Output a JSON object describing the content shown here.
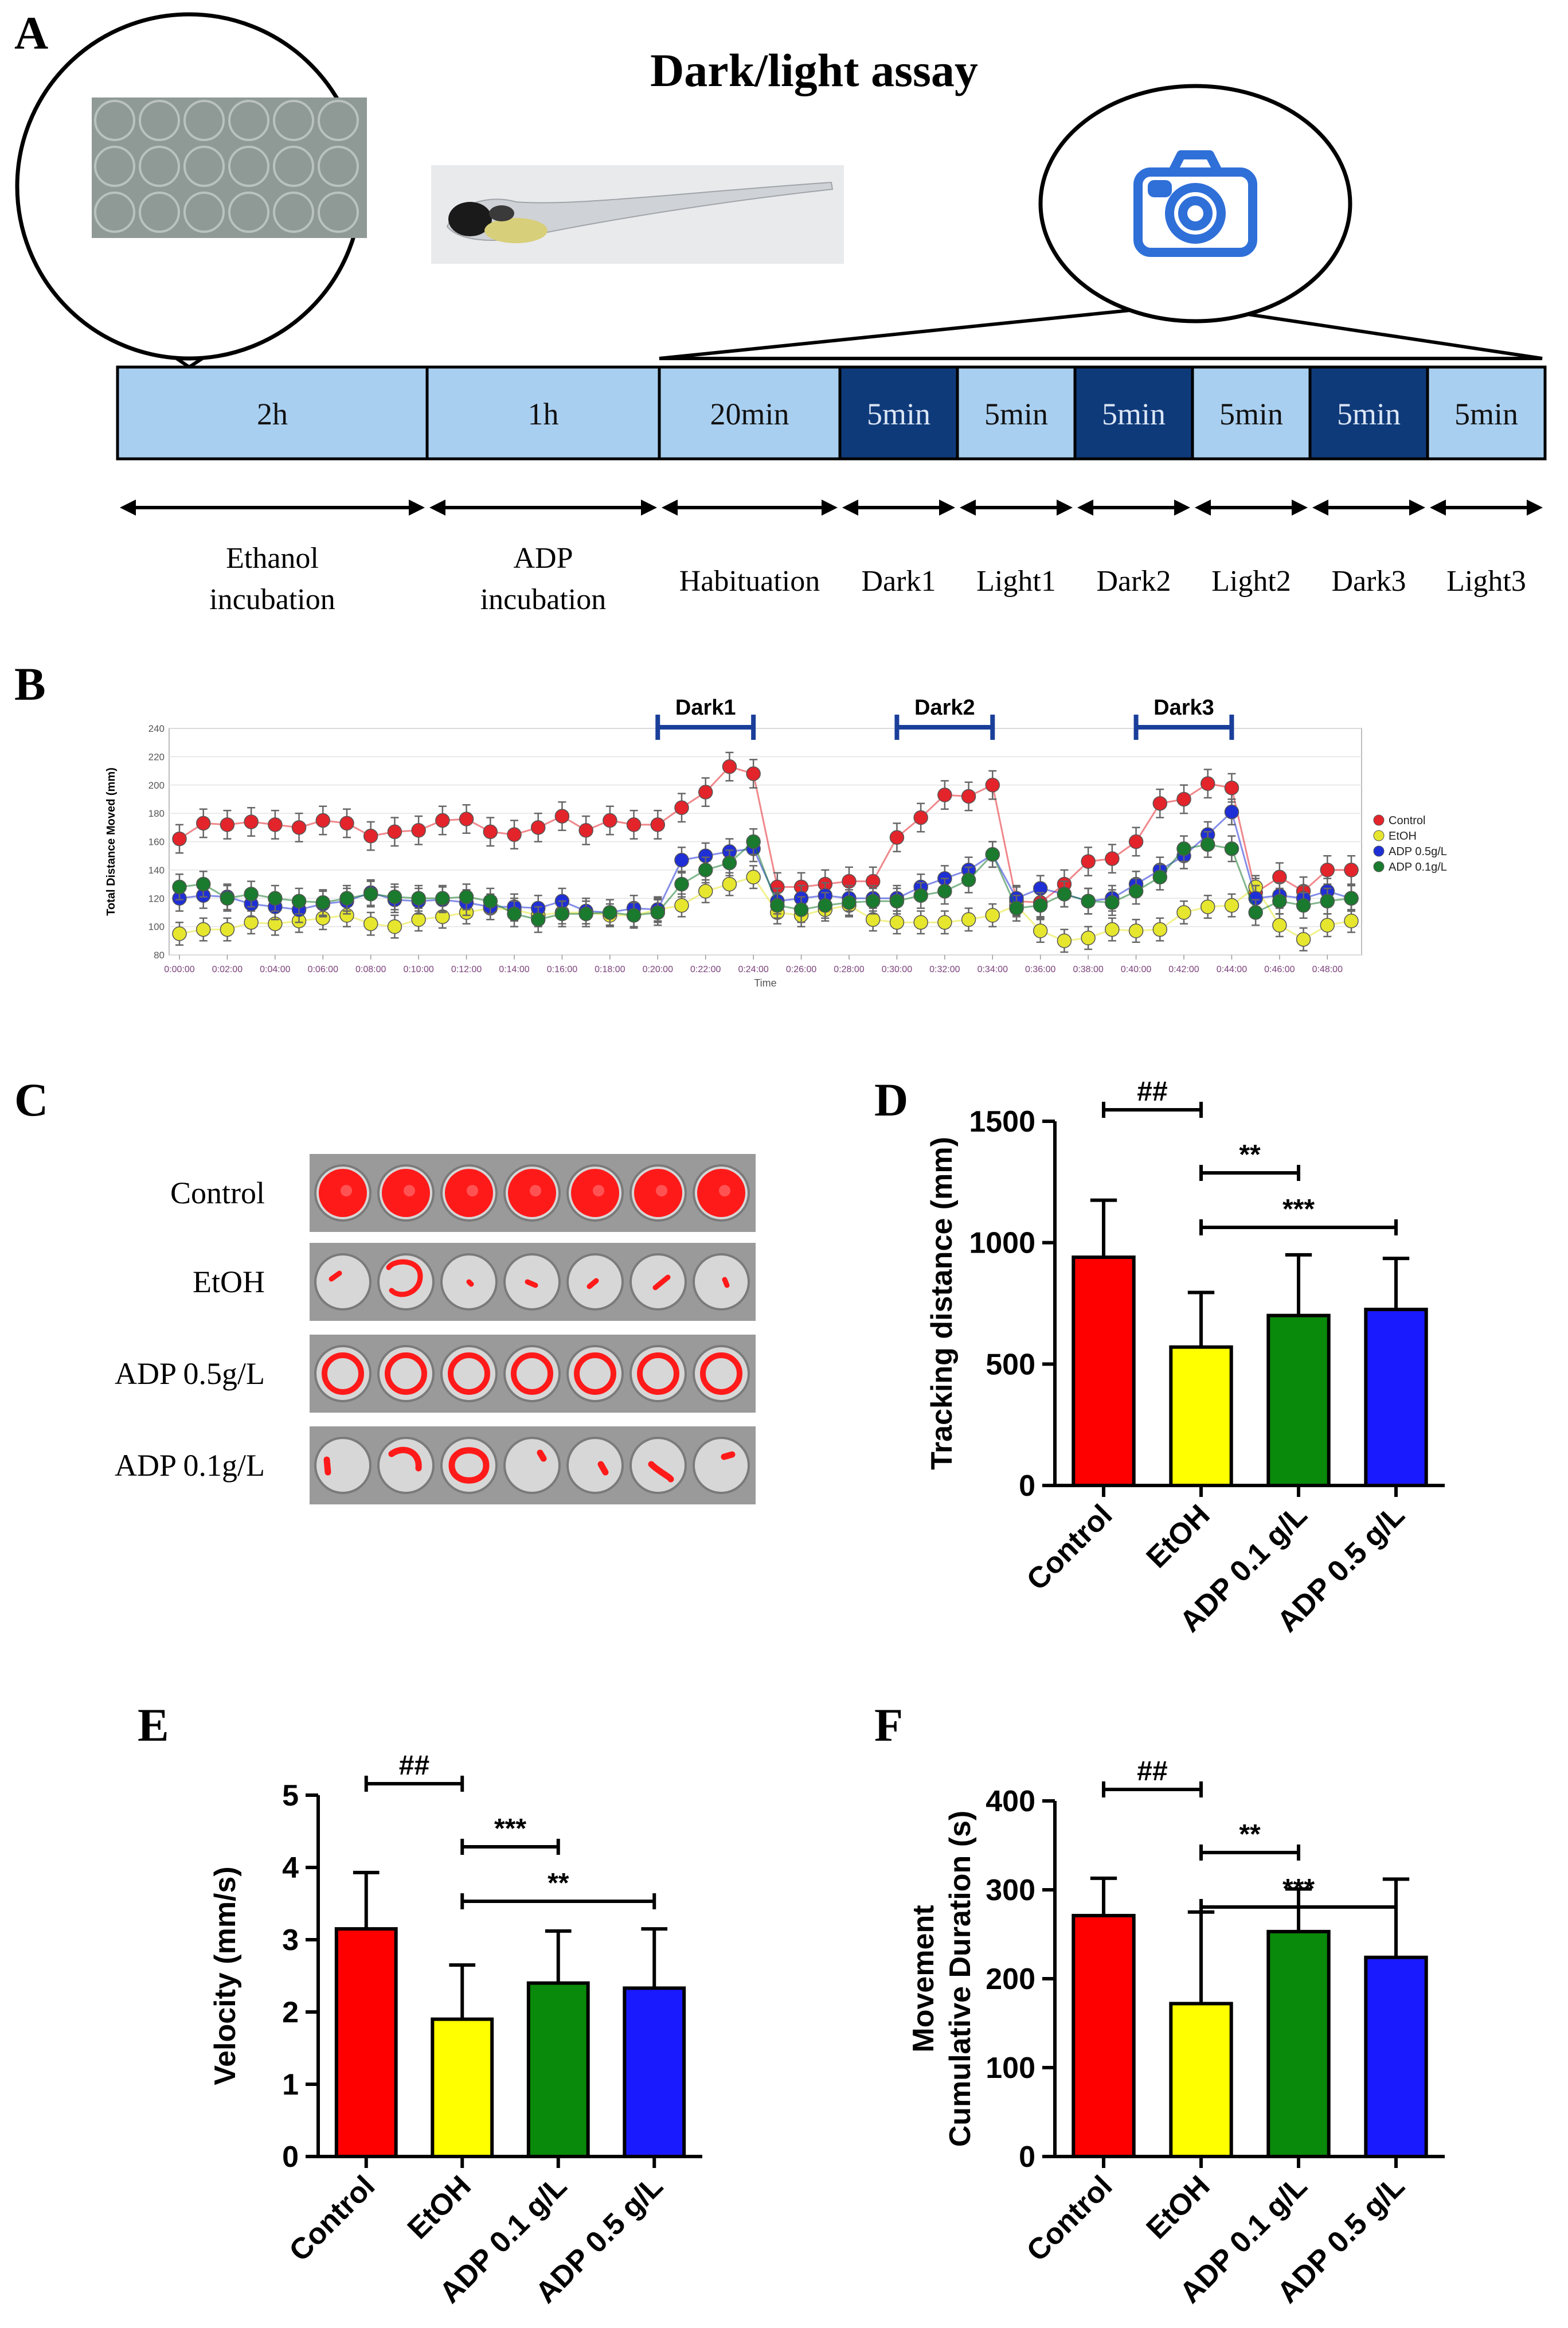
{
  "panel_a": {
    "letter": "A",
    "title": "Dark/light assay",
    "segments": [
      {
        "label": "2h",
        "dark": false,
        "phase": "Ethanol\nincubation"
      },
      {
        "label": "1h",
        "dark": false,
        "phase": "ADP\nincubation"
      },
      {
        "label": "20min",
        "dark": false,
        "phase": "Habituation"
      },
      {
        "label": "5min",
        "dark": true,
        "phase": "Dark1"
      },
      {
        "label": "5min",
        "dark": false,
        "phase": "Light1"
      },
      {
        "label": "5min",
        "dark": true,
        "phase": "Dark2"
      },
      {
        "label": "5min",
        "dark": false,
        "phase": "Light2"
      },
      {
        "label": "5min",
        "dark": true,
        "phase": "Dark3"
      },
      {
        "label": "5min",
        "dark": false,
        "phase": "Light3"
      }
    ],
    "camera_icon": "camera-icon",
    "colors": {
      "light_block": "#a9cff0",
      "dark_block": "#0f3a7a"
    }
  },
  "panel_b": {
    "letter": "B",
    "chart_data": {
      "type": "line",
      "ylabel": "Total Distance Moved (mm)",
      "xlabel": "Time",
      "ylim": [
        80,
        240
      ],
      "yticks": [
        80,
        100,
        120,
        140,
        160,
        180,
        200,
        220,
        240
      ],
      "xticks": [
        "0:00:00",
        "0:02:00",
        "0:04:00",
        "0:06:00",
        "0:08:00",
        "0:10:00",
        "0:12:00",
        "0:14:00",
        "0:16:00",
        "0:18:00",
        "0:20:00",
        "0:22:00",
        "0:24:00",
        "0:26:00",
        "0:28:00",
        "0:30:00",
        "0:32:00",
        "0:34:00",
        "0:36:00",
        "0:38:00",
        "0:40:00",
        "0:42:00",
        "0:44:00",
        "0:46:00",
        "0:48:00"
      ],
      "x_minutes": [
        0,
        1,
        2,
        3,
        4,
        5,
        6,
        7,
        8,
        9,
        10,
        11,
        12,
        13,
        14,
        15,
        16,
        17,
        18,
        19,
        20,
        21,
        22,
        23,
        24,
        25,
        26,
        27,
        28,
        29,
        30,
        31,
        32,
        33,
        34,
        35,
        36,
        37,
        38,
        39,
        40,
        41,
        42,
        43,
        44,
        45,
        46,
        47,
        48,
        49
      ],
      "dark_periods": [
        {
          "label": "Dark1",
          "start": 20,
          "end": 24
        },
        {
          "label": "Dark2",
          "start": 30,
          "end": 34
        },
        {
          "label": "Dark3",
          "start": 40,
          "end": 44
        }
      ],
      "legend_position": "right",
      "series": [
        {
          "name": "Control",
          "color": "#e3242b",
          "error": 10,
          "values": [
            162,
            173,
            172,
            174,
            172,
            170,
            175,
            173,
            164,
            167,
            168,
            175,
            176,
            167,
            165,
            170,
            178,
            168,
            175,
            172,
            172,
            184,
            195,
            213,
            208,
            128,
            128,
            130,
            132,
            132,
            163,
            177,
            193,
            192,
            200,
            118,
            117,
            130,
            146,
            148,
            160,
            187,
            190,
            201,
            198,
            124,
            135,
            125,
            140,
            140
          ]
        },
        {
          "name": "EtOH",
          "color": "#e6e62e",
          "error": 8,
          "values": [
            95,
            98,
            98,
            103,
            102,
            104,
            106,
            108,
            102,
            100,
            105,
            107,
            110,
            113,
            112,
            108,
            110,
            110,
            108,
            108,
            112,
            115,
            125,
            130,
            135,
            110,
            108,
            112,
            115,
            105,
            103,
            103,
            103,
            105,
            108,
            115,
            97,
            90,
            92,
            98,
            97,
            98,
            110,
            114,
            115,
            128,
            101,
            91,
            101,
            104
          ]
        },
        {
          "name": "ADP 0.5g/L",
          "color": "#1f2fd6",
          "error": 9,
          "values": [
            120,
            122,
            121,
            116,
            114,
            112,
            116,
            118,
            124,
            119,
            118,
            119,
            117,
            114,
            114,
            113,
            118,
            111,
            110,
            113,
            112,
            147,
            150,
            153,
            155,
            118,
            120,
            122,
            120,
            120,
            120,
            128,
            134,
            140,
            151,
            120,
            127,
            123,
            118,
            120,
            130,
            140,
            150,
            165,
            181,
            120,
            122,
            120,
            125,
            120
          ]
        },
        {
          "name": "ADP 0.1g/L",
          "color": "#1a7a2e",
          "error": 9,
          "values": [
            128,
            130,
            120,
            123,
            120,
            118,
            117,
            120,
            123,
            121,
            120,
            120,
            121,
            118,
            109,
            105,
            109,
            109,
            110,
            108,
            110,
            130,
            140,
            145,
            160,
            115,
            112,
            115,
            117,
            118,
            118,
            122,
            125,
            133,
            151,
            113,
            115,
            123,
            118,
            117,
            125,
            135,
            155,
            158,
            155,
            110,
            118,
            115,
            118,
            120
          ]
        }
      ]
    }
  },
  "panel_c": {
    "letter": "C",
    "rows": [
      {
        "label": "Control",
        "pattern": "full"
      },
      {
        "label": "EtOH",
        "pattern": "sparse"
      },
      {
        "label": "ADP 0.5g/L",
        "pattern": "ring"
      },
      {
        "label": "ADP 0.1g/L",
        "pattern": "partial"
      }
    ],
    "track_color": "#ff1a1a"
  },
  "panel_d": {
    "letter": "D",
    "chart_data": {
      "type": "bar",
      "categories": [
        "Control",
        "EtOH",
        "ADP 0.1 g/L",
        "ADP 0.5 g/L"
      ],
      "values": [
        940,
        570,
        700,
        725
      ],
      "errors": [
        235,
        225,
        250,
        210
      ],
      "colors": [
        "#ff0000",
        "#ffff00",
        "#0a8a0a",
        "#1a1aff"
      ],
      "ylabel": "Tracking distance (mm)",
      "ylim": [
        0,
        1500
      ],
      "yticks": [
        0,
        500,
        1000,
        1500
      ],
      "significance": [
        {
          "from": 0,
          "to": 1,
          "label": "##"
        },
        {
          "from": 1,
          "to": 2,
          "label": "**"
        },
        {
          "from": 1,
          "to": 3,
          "label": "***"
        }
      ]
    }
  },
  "panel_e": {
    "letter": "E",
    "chart_data": {
      "type": "bar",
      "categories": [
        "Control",
        "EtOH",
        "ADP 0.1 g/L",
        "ADP 0.5 g/L"
      ],
      "values": [
        3.15,
        1.9,
        2.4,
        2.33
      ],
      "errors": [
        0.78,
        0.75,
        0.72,
        0.82
      ],
      "colors": [
        "#ff0000",
        "#ffff00",
        "#0a8a0a",
        "#1a1aff"
      ],
      "ylabel": "Velocity (mm/s)",
      "ylim": [
        0,
        5
      ],
      "yticks": [
        0,
        1,
        2,
        3,
        4,
        5
      ],
      "significance": [
        {
          "from": 0,
          "to": 1,
          "label": "##"
        },
        {
          "from": 1,
          "to": 2,
          "label": "***"
        },
        {
          "from": 1,
          "to": 3,
          "label": "**"
        }
      ]
    }
  },
  "panel_f": {
    "letter": "F",
    "chart_data": {
      "type": "bar",
      "categories": [
        "Control",
        "EtOH",
        "ADP 0.1 g/L",
        "ADP 0.5 g/L"
      ],
      "values": [
        271,
        172,
        253,
        224
      ],
      "errors": [
        42,
        103,
        48,
        88
      ],
      "colors": [
        "#ff0000",
        "#ffff00",
        "#0a8a0a",
        "#1a1aff"
      ],
      "ylabel": "Movement\nCumulative Duration (s)",
      "ylim": [
        0,
        400
      ],
      "yticks": [
        0,
        100,
        200,
        300,
        400
      ],
      "significance": [
        {
          "from": 0,
          "to": 1,
          "label": "##"
        },
        {
          "from": 1,
          "to": 2,
          "label": "**"
        },
        {
          "from": 1,
          "to": 3,
          "label": "***"
        }
      ]
    }
  }
}
